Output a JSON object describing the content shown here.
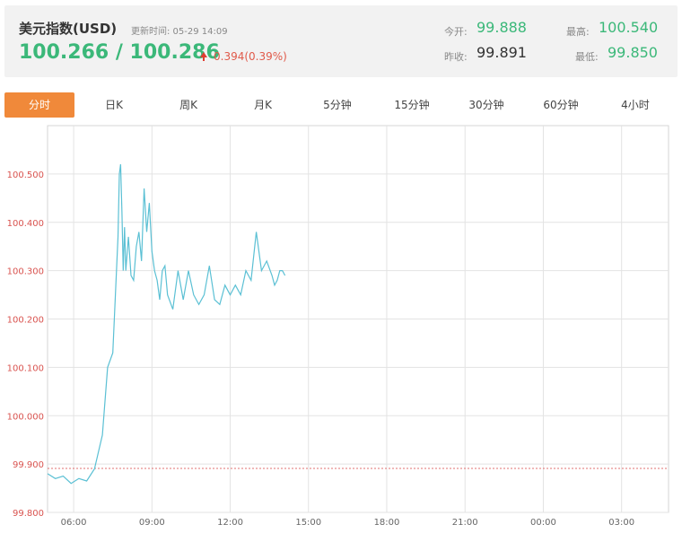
{
  "header": {
    "title": "美元指数(USD)",
    "update_label": "更新时间: 05-29 14:09",
    "price_pair": "100.266 / 100.286",
    "change": "0.394(0.39%)",
    "open_label": "今开:",
    "open_value": "99.888",
    "prev_label": "昨收:",
    "prev_value": "99.891",
    "high_label": "最高:",
    "high_value": "100.540",
    "low_label": "最低:",
    "low_value": "99.850"
  },
  "tabs": [
    {
      "label": "分时",
      "active": true
    },
    {
      "label": "日K",
      "active": false
    },
    {
      "label": "周K",
      "active": false
    },
    {
      "label": "月K",
      "active": false
    },
    {
      "label": "5分钟",
      "active": false
    },
    {
      "label": "15分钟",
      "active": false
    },
    {
      "label": "30分钟",
      "active": false
    },
    {
      "label": "60分钟",
      "active": false
    },
    {
      "label": "4小时",
      "active": false
    }
  ],
  "colors": {
    "line": "#5bc0d4",
    "reference_line": "#e07070",
    "grid": "#e3e3e3",
    "y_tick": "#d9534f",
    "x_tick": "#666666"
  },
  "chart_data": {
    "type": "line",
    "title": "",
    "xlabel": "",
    "ylabel": "",
    "ylim": [
      99.8,
      100.6
    ],
    "x_ticks": [
      "06:00",
      "09:00",
      "12:00",
      "15:00",
      "18:00",
      "21:00",
      "00:00",
      "03:00"
    ],
    "y_ticks": [
      "99.800",
      "99.900",
      "100.000",
      "100.100",
      "100.200",
      "100.300",
      "100.400",
      "100.500"
    ],
    "reference_line": 99.891,
    "grid": true,
    "x_range_hours": [
      5.0,
      28.8
    ],
    "series": [
      {
        "x": [
          5.0,
          5.3,
          5.6,
          5.9,
          6.2,
          6.5,
          6.8,
          7.1,
          7.3,
          7.5,
          7.6,
          7.7,
          7.75,
          7.8,
          7.85,
          7.9,
          7.95,
          8.0,
          8.1,
          8.2,
          8.3,
          8.4,
          8.5,
          8.6,
          8.7,
          8.8,
          8.9,
          9.0,
          9.1,
          9.2,
          9.3,
          9.4,
          9.5,
          9.6,
          9.8,
          10.0,
          10.2,
          10.4,
          10.6,
          10.8,
          11.0,
          11.2,
          11.4,
          11.6,
          11.8,
          12.0,
          12.2,
          12.4,
          12.6,
          12.8,
          13.0,
          13.2,
          13.4,
          13.6,
          13.7,
          13.8,
          13.9,
          14.0,
          14.1
        ],
        "y": [
          99.88,
          99.87,
          99.875,
          99.86,
          99.87,
          99.865,
          99.89,
          99.96,
          100.1,
          100.13,
          100.25,
          100.37,
          100.5,
          100.52,
          100.42,
          100.3,
          100.39,
          100.3,
          100.37,
          100.29,
          100.28,
          100.35,
          100.38,
          100.32,
          100.47,
          100.38,
          100.44,
          100.34,
          100.3,
          100.28,
          100.24,
          100.3,
          100.31,
          100.25,
          100.22,
          100.3,
          100.24,
          100.3,
          100.25,
          100.23,
          100.25,
          100.31,
          100.24,
          100.23,
          100.27,
          100.25,
          100.27,
          100.25,
          100.3,
          100.28,
          100.38,
          100.3,
          100.32,
          100.29,
          100.27,
          100.28,
          100.3,
          100.3,
          100.29
        ]
      }
    ]
  }
}
